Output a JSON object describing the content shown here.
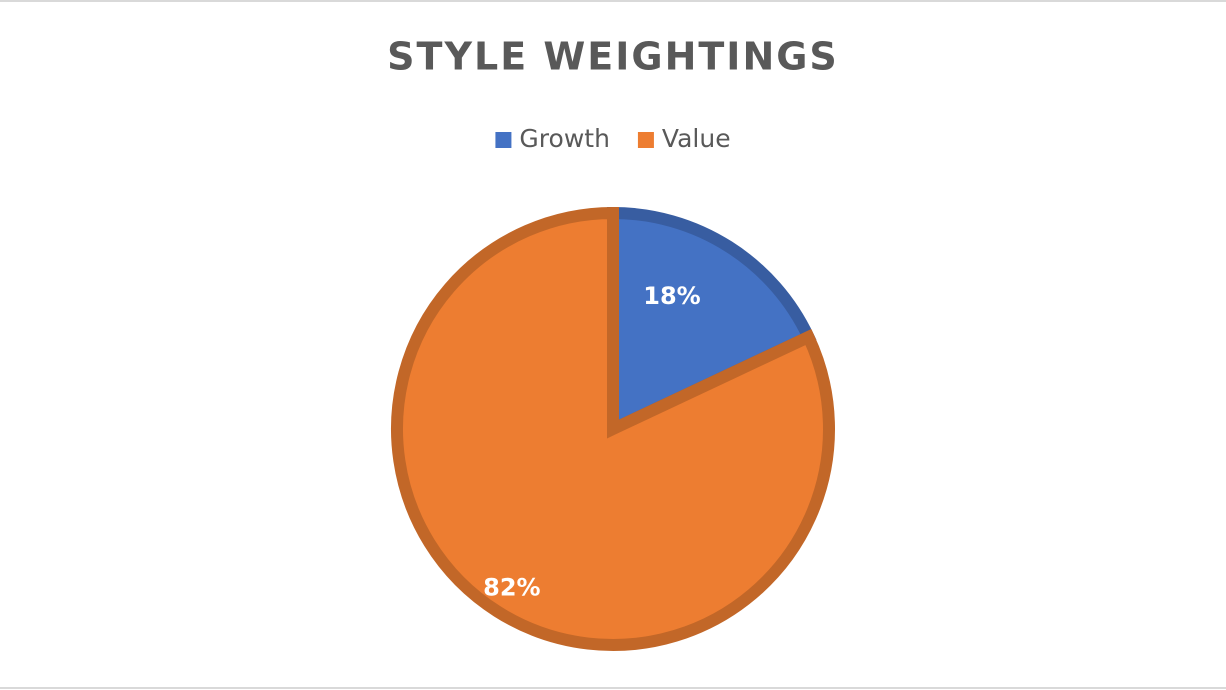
{
  "chart_data": {
    "type": "pie",
    "title": "STYLE WEIGHTINGS",
    "categories": [
      "Growth",
      "Value"
    ],
    "values": [
      18,
      82
    ],
    "value_labels": [
      "18%",
      "82%"
    ],
    "colors": [
      "#4472c4",
      "#ed7d31"
    ],
    "legend": "top"
  }
}
